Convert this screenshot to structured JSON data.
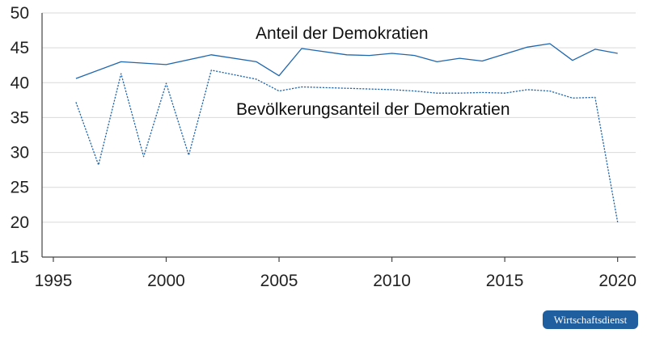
{
  "chart_data": {
    "type": "line",
    "title": "",
    "xlabel": "",
    "ylabel": "",
    "xlim": [
      1994.5,
      2020.8
    ],
    "ylim": [
      15,
      50
    ],
    "x_ticks": [
      1995,
      2000,
      2005,
      2010,
      2015,
      2020
    ],
    "y_ticks": [
      15,
      20,
      25,
      30,
      35,
      40,
      45,
      50
    ],
    "grid": true,
    "series": [
      {
        "name": "Anteil der Demokratien",
        "style": "solid",
        "color": "#1f66ad",
        "x": [
          1996,
          1998,
          2000,
          2002,
          2004,
          2005,
          2006,
          2008,
          2009,
          2010,
          2011,
          2012,
          2013,
          2014,
          2015,
          2016,
          2017,
          2018,
          2019,
          2020
        ],
        "y": [
          40.6,
          43.0,
          42.6,
          44.0,
          43.0,
          41.0,
          44.9,
          44.0,
          43.9,
          44.2,
          43.9,
          43.0,
          43.5,
          43.1,
          44.1,
          45.1,
          45.6,
          43.2,
          44.8,
          44.2
        ]
      },
      {
        "name": "Bevölkerungsanteil der Demokratien",
        "style": "dotted",
        "color": "#1f66ad",
        "x": [
          1996,
          1997,
          1998,
          1999,
          2000,
          2001,
          2002,
          2004,
          2005,
          2006,
          2008,
          2009,
          2010,
          2011,
          2012,
          2013,
          2014,
          2015,
          2016,
          2017,
          2018,
          2019,
          2020
        ],
        "y": [
          37.2,
          28.2,
          41.3,
          29.4,
          39.9,
          29.6,
          41.8,
          40.5,
          38.8,
          39.4,
          39.2,
          39.1,
          39.0,
          38.8,
          38.5,
          38.5,
          38.6,
          38.5,
          39.0,
          38.8,
          37.8,
          37.9,
          20.0
        ]
      }
    ]
  },
  "labels": {
    "series1": "Anteil der Demokratien",
    "series2": "Bevölkerungsanteil der Demokratien"
  },
  "badge": "Wirtschaftsdienst"
}
